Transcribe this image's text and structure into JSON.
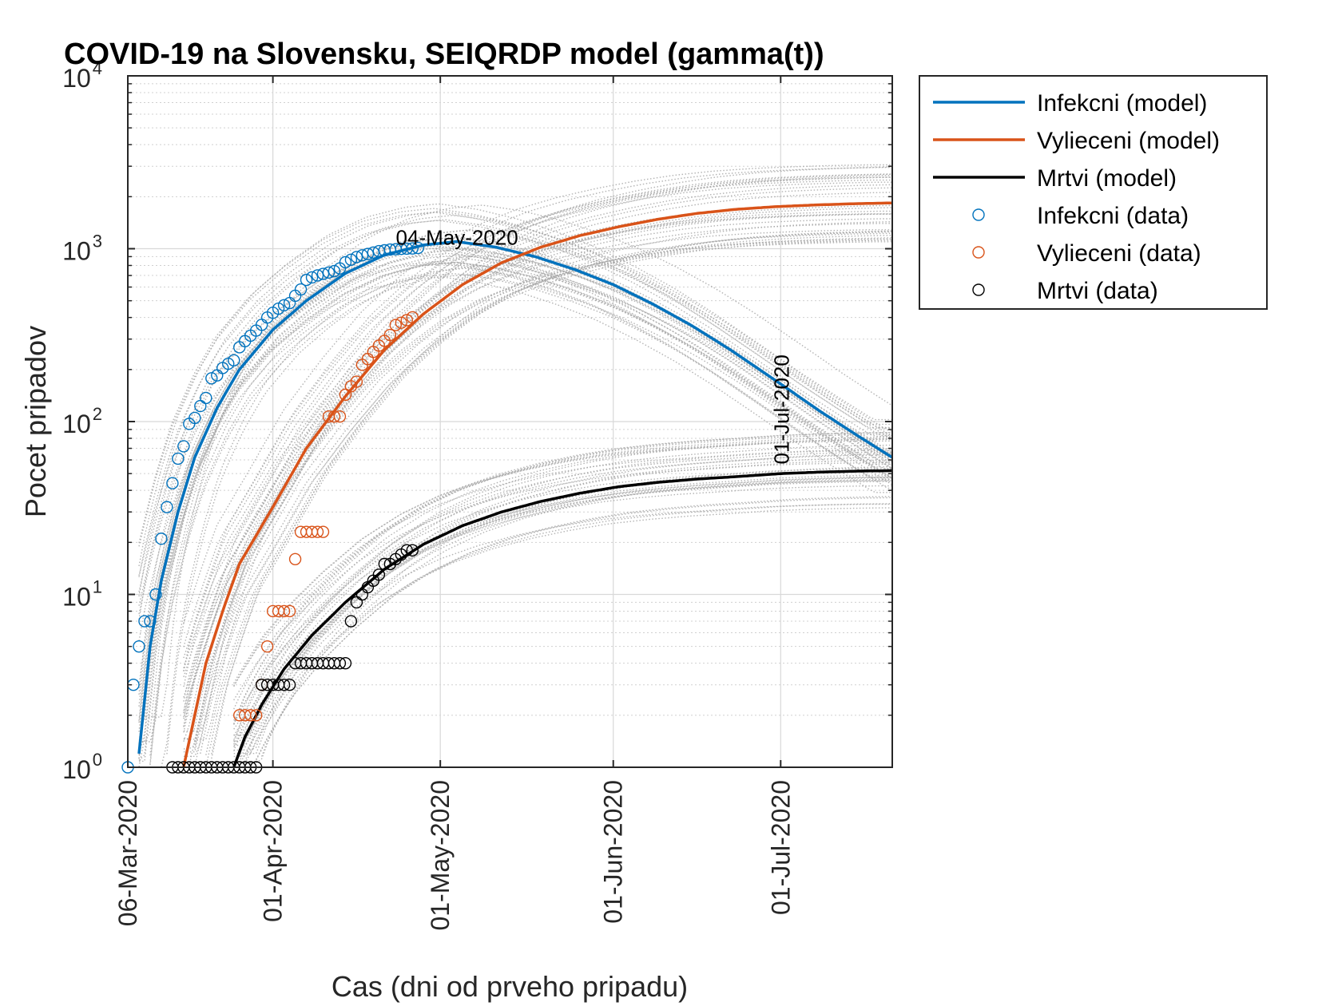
{
  "chart_data": {
    "type": "line",
    "title": "COVID-19 na Slovensku, SEIQRDP model (gamma(t))",
    "xlabel": "Cas (dni od prveho pripadu)",
    "ylabel": "Pocet pripadov",
    "yscale": "log",
    "ylim": [
      1,
      10000
    ],
    "xlim": [
      "2020-03-06",
      "2020-07-21"
    ],
    "x_ticks": [
      "06-Mar-2020",
      "01-Apr-2020",
      "01-May-2020",
      "01-Jun-2020",
      "01-Jul-2020"
    ],
    "y_ticks": [
      {
        "base": "10",
        "exp": "0"
      },
      {
        "base": "10",
        "exp": "1"
      },
      {
        "base": "10",
        "exp": "2"
      },
      {
        "base": "10",
        "exp": "3"
      },
      {
        "base": "10",
        "exp": "4"
      }
    ],
    "grid": true,
    "legend_position": "outside-right",
    "annotations": [
      {
        "text": "04-May-2020",
        "x": "2020-05-04",
        "y": 1100,
        "orientation": "horizontal"
      },
      {
        "text": "01-Jul-2020",
        "x": "2020-07-01",
        "y": 52,
        "orientation": "vertical"
      }
    ],
    "colors": {
      "infected": "#0072BD",
      "recovered": "#D95319",
      "dead": "#000000",
      "ensemble": "#A6A6A6"
    },
    "series": [
      {
        "name": "Infekcni (model)",
        "kind": "line",
        "color": "#0072BD",
        "x": [
          "2020-03-08",
          "2020-03-10",
          "2020-03-12",
          "2020-03-15",
          "2020-03-18",
          "2020-03-22",
          "2020-03-26",
          "2020-04-01",
          "2020-04-07",
          "2020-04-14",
          "2020-04-21",
          "2020-04-28",
          "2020-05-04",
          "2020-05-11",
          "2020-05-18",
          "2020-05-25",
          "2020-06-01",
          "2020-06-08",
          "2020-06-15",
          "2020-06-22",
          "2020-07-01",
          "2020-07-08",
          "2020-07-15",
          "2020-07-21"
        ],
        "y": [
          1.2,
          5,
          12,
          30,
          62,
          120,
          200,
          340,
          500,
          720,
          920,
          1050,
          1100,
          1020,
          900,
          760,
          620,
          480,
          360,
          260,
          165,
          115,
          82,
          62
        ]
      },
      {
        "name": "Vylieceni (model)",
        "kind": "line",
        "color": "#D95319",
        "x": [
          "2020-03-16",
          "2020-03-18",
          "2020-03-20",
          "2020-03-23",
          "2020-03-26",
          "2020-04-01",
          "2020-04-07",
          "2020-04-14",
          "2020-04-21",
          "2020-04-28",
          "2020-05-05",
          "2020-05-12",
          "2020-05-19",
          "2020-05-26",
          "2020-06-02",
          "2020-06-09",
          "2020-06-16",
          "2020-06-23",
          "2020-06-30",
          "2020-07-07",
          "2020-07-14",
          "2020-07-21"
        ],
        "y": [
          1,
          2,
          4,
          8,
          15,
          32,
          70,
          140,
          260,
          420,
          620,
          830,
          1020,
          1190,
          1340,
          1480,
          1600,
          1690,
          1750,
          1790,
          1820,
          1840
        ]
      },
      {
        "name": "Mrtvi (model)",
        "kind": "line",
        "color": "#000000",
        "x": [
          "2020-03-25",
          "2020-03-27",
          "2020-03-30",
          "2020-04-03",
          "2020-04-08",
          "2020-04-14",
          "2020-04-21",
          "2020-04-28",
          "2020-05-05",
          "2020-05-12",
          "2020-05-19",
          "2020-05-26",
          "2020-06-02",
          "2020-06-09",
          "2020-06-16",
          "2020-06-23",
          "2020-07-01",
          "2020-07-08",
          "2020-07-15",
          "2020-07-21"
        ],
        "y": [
          1,
          1.5,
          2.3,
          3.7,
          5.8,
          9,
          14,
          19.5,
          25,
          30,
          34.5,
          38.5,
          42,
          44.5,
          46.5,
          48,
          50,
          51,
          51.7,
          52
        ]
      },
      {
        "name": "Infekcni (data)",
        "kind": "markers",
        "color": "#0072BD",
        "x": [
          "2020-03-06",
          "2020-03-07",
          "2020-03-08",
          "2020-03-09",
          "2020-03-10",
          "2020-03-11",
          "2020-03-12",
          "2020-03-13",
          "2020-03-14",
          "2020-03-15",
          "2020-03-16",
          "2020-03-17",
          "2020-03-18",
          "2020-03-19",
          "2020-03-20",
          "2020-03-21",
          "2020-03-22",
          "2020-03-23",
          "2020-03-24",
          "2020-03-25",
          "2020-03-26",
          "2020-03-27",
          "2020-03-28",
          "2020-03-29",
          "2020-03-30",
          "2020-03-31",
          "2020-04-01",
          "2020-04-02",
          "2020-04-03",
          "2020-04-04",
          "2020-04-05",
          "2020-04-06",
          "2020-04-07",
          "2020-04-08",
          "2020-04-09",
          "2020-04-10",
          "2020-04-11",
          "2020-04-12",
          "2020-04-13",
          "2020-04-14",
          "2020-04-15",
          "2020-04-16",
          "2020-04-17",
          "2020-04-18",
          "2020-04-19",
          "2020-04-20",
          "2020-04-21",
          "2020-04-22",
          "2020-04-23",
          "2020-04-24",
          "2020-04-25",
          "2020-04-26",
          "2020-04-27"
        ],
        "y": [
          1,
          3,
          5,
          7,
          7,
          10,
          21,
          32,
          44,
          61,
          72,
          97,
          105,
          123,
          137,
          178,
          185,
          204,
          216,
          226,
          269,
          292,
          314,
          336,
          363,
          400,
          426,
          450,
          471,
          485,
          534,
          581,
          660,
          682,
          701,
          715,
          728,
          742,
          769,
          835,
          863,
          895,
          915,
          932,
          950,
          968,
          979,
          989,
          993,
          998,
          1001,
          1003,
          1010
        ]
      },
      {
        "name": "Vylieceni (data)",
        "kind": "markers",
        "color": "#D95319",
        "x": [
          "2020-03-26",
          "2020-03-27",
          "2020-03-28",
          "2020-03-29",
          "2020-03-30",
          "2020-03-31",
          "2020-04-01",
          "2020-04-02",
          "2020-04-03",
          "2020-04-04",
          "2020-04-05",
          "2020-04-06",
          "2020-04-07",
          "2020-04-08",
          "2020-04-09",
          "2020-04-10",
          "2020-04-11",
          "2020-04-12",
          "2020-04-13",
          "2020-04-14",
          "2020-04-15",
          "2020-04-16",
          "2020-04-17",
          "2020-04-18",
          "2020-04-19",
          "2020-04-20",
          "2020-04-21",
          "2020-04-22",
          "2020-04-23",
          "2020-04-24",
          "2020-04-25",
          "2020-04-26"
        ],
        "y": [
          2,
          2,
          2,
          2,
          3,
          5,
          8,
          8,
          8,
          8,
          16,
          23,
          23,
          23,
          23,
          23,
          107,
          107,
          107,
          143,
          160,
          170,
          213,
          230,
          253,
          275,
          293,
          317,
          362,
          373,
          386,
          401
        ]
      },
      {
        "name": "Mrtvi (data)",
        "kind": "markers",
        "color": "#000000",
        "x": [
          "2020-03-14",
          "2020-03-15",
          "2020-03-16",
          "2020-03-17",
          "2020-03-18",
          "2020-03-19",
          "2020-03-20",
          "2020-03-21",
          "2020-03-22",
          "2020-03-23",
          "2020-03-24",
          "2020-03-25",
          "2020-03-26",
          "2020-03-27",
          "2020-03-28",
          "2020-03-29",
          "2020-03-30",
          "2020-03-31",
          "2020-04-01",
          "2020-04-02",
          "2020-04-03",
          "2020-04-04",
          "2020-04-05",
          "2020-04-06",
          "2020-04-07",
          "2020-04-08",
          "2020-04-09",
          "2020-04-10",
          "2020-04-11",
          "2020-04-12",
          "2020-04-13",
          "2020-04-14",
          "2020-04-15",
          "2020-04-16",
          "2020-04-17",
          "2020-04-18",
          "2020-04-19",
          "2020-04-20",
          "2020-04-21",
          "2020-04-22",
          "2020-04-23",
          "2020-04-24",
          "2020-04-25",
          "2020-04-26"
        ],
        "y": [
          1,
          1,
          1,
          1,
          1,
          1,
          1,
          1,
          1,
          1,
          1,
          1,
          1,
          1,
          1,
          1,
          3,
          3,
          3,
          3,
          3,
          3,
          4,
          4,
          4,
          4,
          4,
          4,
          4,
          4,
          4,
          4,
          7,
          9,
          10,
          11,
          12,
          13,
          15,
          15,
          16,
          17,
          18,
          18
        ]
      }
    ],
    "legend": [
      {
        "label": "Infekcni (model)",
        "kind": "line",
        "color": "#0072BD"
      },
      {
        "label": "Vylieceni (model)",
        "kind": "line",
        "color": "#D95319"
      },
      {
        "label": "Mrtvi (model)",
        "kind": "line",
        "color": "#000000"
      },
      {
        "label": "Infekcni (data)",
        "kind": "marker",
        "color": "#0072BD"
      },
      {
        "label": "Vylieceni (data)",
        "kind": "marker",
        "color": "#D95319"
      },
      {
        "label": "Mrtvi (data)",
        "kind": "marker",
        "color": "#000000"
      }
    ]
  }
}
